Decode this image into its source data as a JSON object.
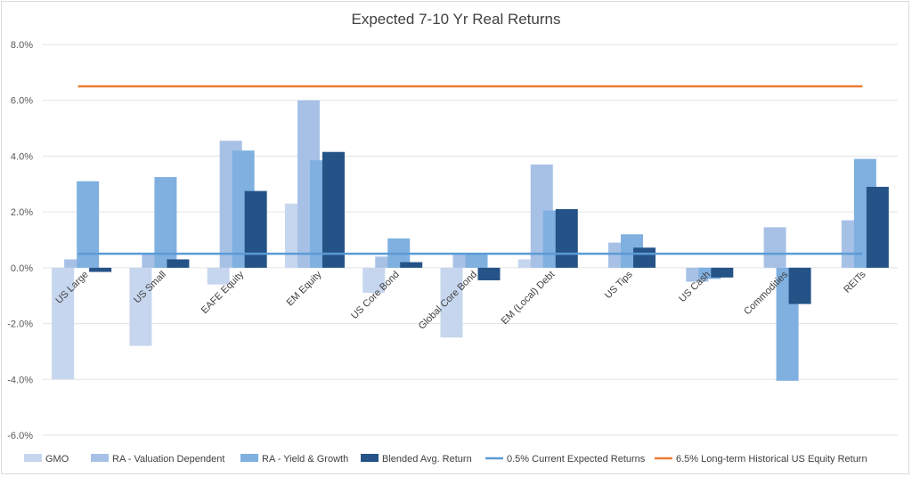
{
  "chart_data": {
    "type": "bar",
    "title": "Expected 7-10 Yr Real Returns",
    "xlabel": "",
    "ylabel": "",
    "ylim": [
      -0.06,
      0.08
    ],
    "yticks": [
      "8.0%",
      "6.0%",
      "4.0%",
      "2.0%",
      "0.0%",
      "-2.0%",
      "-4.0%",
      "-6.0%"
    ],
    "ytick_values": [
      0.08,
      0.06,
      0.04,
      0.02,
      0.0,
      -0.02,
      -0.04,
      -0.06
    ],
    "grid": true,
    "legend_position": "bottom",
    "categories": [
      "US Large",
      "US Small",
      "EAFE Equity",
      "EM Equity",
      "US Core Bond",
      "Global Core Bond",
      "EM (Local) Debt",
      "US Tips",
      "US Cash",
      "Commodities",
      "REITs"
    ],
    "series": [
      {
        "name": "GMO",
        "kind": "bar",
        "color": "#c6d6ee",
        "values": [
          -0.04,
          -0.028,
          -0.006,
          0.023,
          -0.009,
          -0.025,
          0.003,
          null,
          null,
          null,
          null
        ]
      },
      {
        "name": "RA - Valuation Dependent",
        "kind": "bar",
        "color": "#a7c1e6",
        "values": [
          0.003,
          0.005,
          0.0455,
          0.06,
          0.004,
          0.005,
          0.037,
          0.009,
          -0.005,
          0.0145,
          0.017
        ]
      },
      {
        "name": "RA - Yield & Growth",
        "kind": "bar",
        "color": "#7fb0e0",
        "values": [
          0.031,
          0.0325,
          0.042,
          0.0385,
          0.0105,
          0.005,
          0.0205,
          0.012,
          -0.004,
          -0.0405,
          0.039
        ]
      },
      {
        "name": "Blended Avg. Return",
        "kind": "bar",
        "color": "#255387",
        "values": [
          -0.0015,
          0.003,
          0.0275,
          0.0415,
          0.002,
          -0.0045,
          0.021,
          0.0072,
          -0.0035,
          -0.013,
          0.029
        ]
      },
      {
        "name": "0.5% Current Expected Returns",
        "kind": "line",
        "color": "#5b9bd5",
        "value": 0.005
      },
      {
        "name": "6.5% Long-term Historical US Equity Return",
        "kind": "line",
        "color": "#ed7d31",
        "value": 0.065
      }
    ]
  }
}
